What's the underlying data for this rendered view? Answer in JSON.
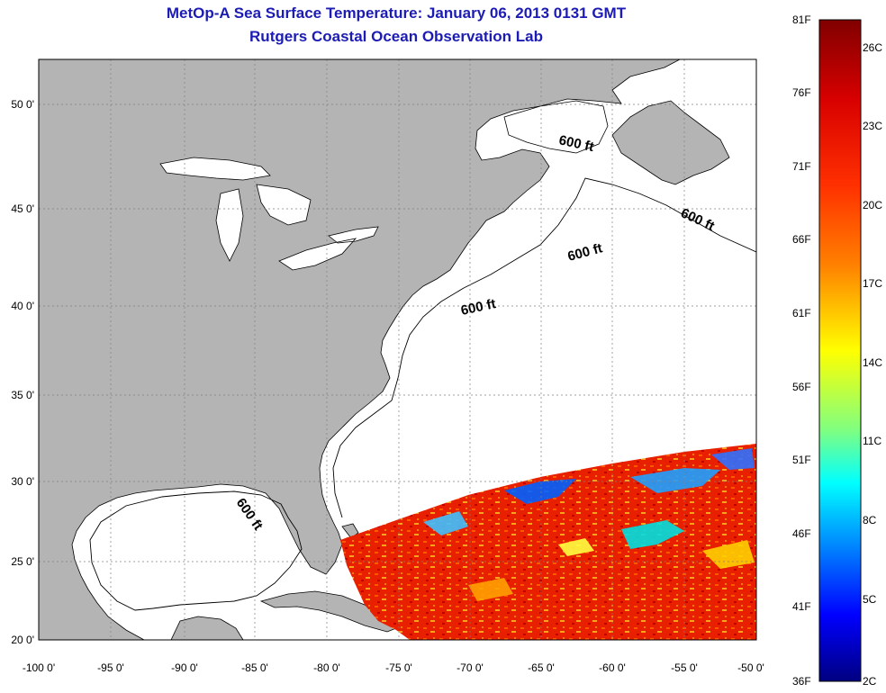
{
  "title": {
    "line1": "MetOp-A Sea Surface Temperature:  January 06, 2013 0131 GMT",
    "line2": "Rutgers Coastal Ocean Observation Lab"
  },
  "map": {
    "lon_ticks": [
      "-100 0'",
      "-95 0'",
      "-90 0'",
      "-85 0'",
      "-80 0'",
      "-75 0'",
      "-70 0'",
      "-65 0'",
      "-60 0'",
      "-55 0'",
      "-50 0'"
    ],
    "lat_ticks": [
      "50 0'",
      "45 0'",
      "40 0'",
      "35 0'",
      "30 0'",
      "25 0'",
      "20 0'"
    ],
    "isobath_labels": [
      "600 ft",
      "600 ft",
      "600 ft",
      "600 ft",
      "600 ft"
    ],
    "land_color": "#b4b4b4",
    "ocean_color": "#ffffff"
  },
  "colorbar": {
    "f_labels": [
      "81F",
      "76F",
      "71F",
      "66F",
      "61F",
      "56F",
      "51F",
      "46F",
      "41F",
      "36F"
    ],
    "c_labels": [
      "26C",
      "23C",
      "20C",
      "17C",
      "14C",
      "11C",
      "8C",
      "5C",
      "2C"
    ],
    "colors": [
      "#8b0000",
      "#ff2000",
      "#ff8000",
      "#ffff00",
      "#80ff80",
      "#00ffff",
      "#0080ff",
      "#0000ff",
      "#00008b"
    ]
  }
}
